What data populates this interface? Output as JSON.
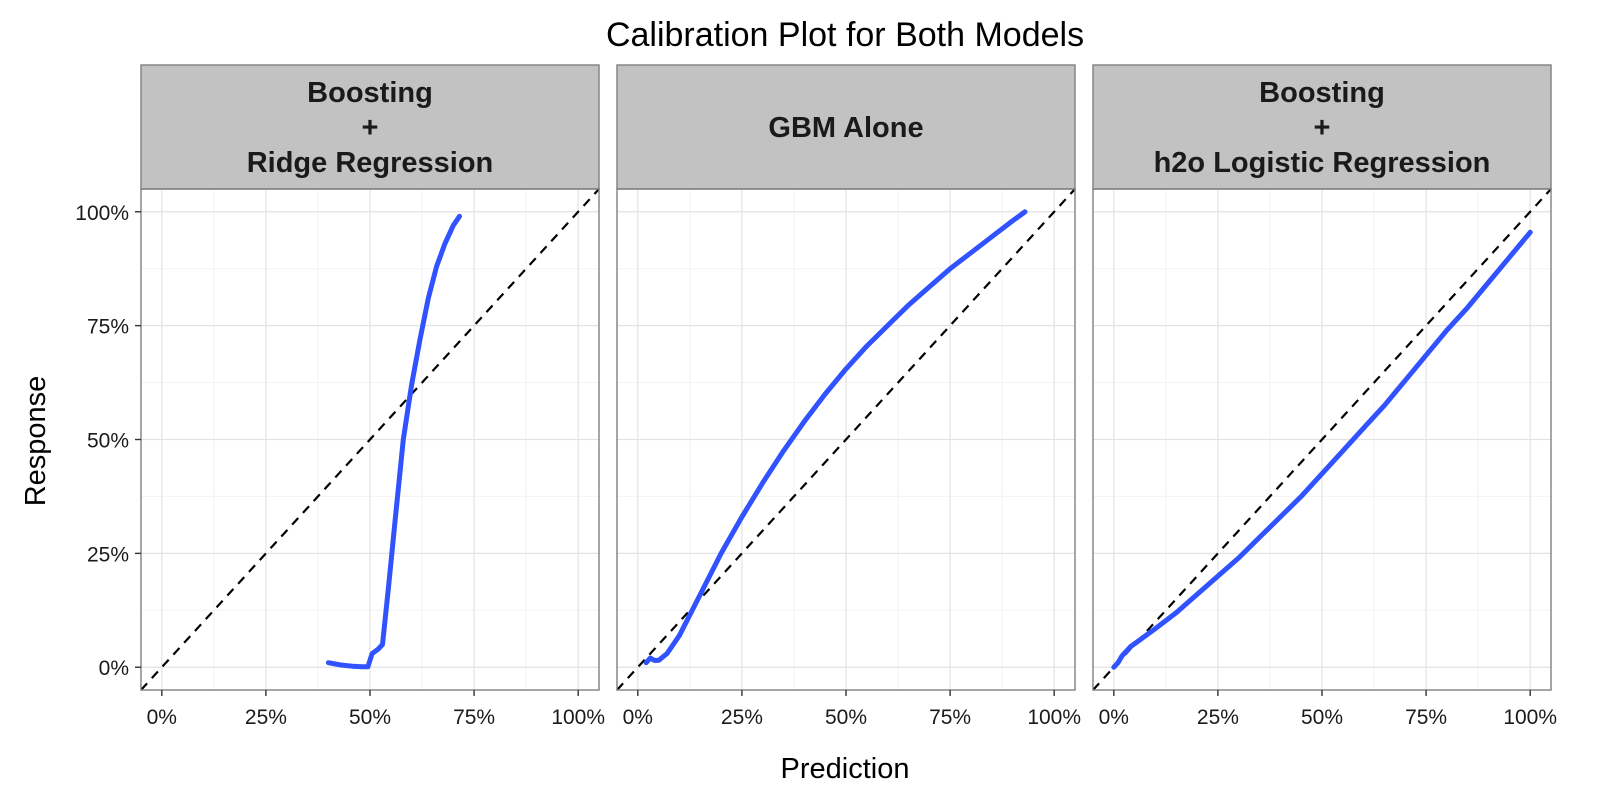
{
  "title": "Calibration Plot for Both Models",
  "x_axis_label": "Prediction",
  "y_axis_label": "Response",
  "line_color": "#3153ff",
  "chart_data": {
    "type": "line",
    "title": "Calibration Plot for Both Models",
    "xlabel": "Prediction",
    "ylabel": "Response",
    "xlim": [
      -0.05,
      1.05
    ],
    "ylim": [
      -0.05,
      1.05
    ],
    "x_ticks": [
      "0%",
      "25%",
      "50%",
      "75%",
      "100%"
    ],
    "y_ticks": [
      "0%",
      "25%",
      "50%",
      "75%",
      "100%"
    ],
    "grid": true,
    "reference_line": "dashed y = x",
    "panels": [
      {
        "strip": [
          "Boosting",
          "+",
          "Ridge Regression"
        ],
        "series": [
          {
            "x": [
              0.4,
              0.43,
              0.46,
              0.48,
              0.495,
              0.505,
              0.52,
              0.53,
              0.545,
              0.56,
              0.58,
              0.6,
              0.62,
              0.64,
              0.66,
              0.68,
              0.7,
              0.715
            ],
            "y": [
              0.01,
              0.005,
              0.002,
              0.001,
              0.001,
              0.03,
              0.04,
              0.05,
              0.18,
              0.32,
              0.5,
              0.62,
              0.72,
              0.81,
              0.88,
              0.93,
              0.97,
              0.99
            ]
          }
        ]
      },
      {
        "strip": [
          "GBM Alone"
        ],
        "series": [
          {
            "x": [
              0.02,
              0.03,
              0.04,
              0.05,
              0.07,
              0.1,
              0.15,
              0.2,
              0.25,
              0.3,
              0.35,
              0.4,
              0.45,
              0.5,
              0.55,
              0.6,
              0.65,
              0.7,
              0.75,
              0.8,
              0.85,
              0.9,
              0.93
            ],
            "y": [
              0.01,
              0.02,
              0.015,
              0.015,
              0.03,
              0.07,
              0.16,
              0.25,
              0.33,
              0.405,
              0.475,
              0.54,
              0.6,
              0.655,
              0.705,
              0.75,
              0.795,
              0.835,
              0.875,
              0.91,
              0.945,
              0.98,
              1.0
            ]
          }
        ]
      },
      {
        "strip": [
          "Boosting",
          "+",
          "h2o Logistic Regression"
        ],
        "series": [
          {
            "x": [
              0.0,
              0.01,
              0.02,
              0.04,
              0.07,
              0.1,
              0.15,
              0.2,
              0.25,
              0.3,
              0.35,
              0.4,
              0.45,
              0.5,
              0.55,
              0.6,
              0.65,
              0.7,
              0.75,
              0.8,
              0.85,
              0.9,
              0.95,
              1.0
            ],
            "y": [
              0.0,
              0.01,
              0.025,
              0.045,
              0.065,
              0.085,
              0.12,
              0.16,
              0.2,
              0.24,
              0.285,
              0.33,
              0.375,
              0.425,
              0.475,
              0.525,
              0.575,
              0.63,
              0.685,
              0.74,
              0.79,
              0.845,
              0.9,
              0.955
            ]
          }
        ]
      }
    ]
  }
}
